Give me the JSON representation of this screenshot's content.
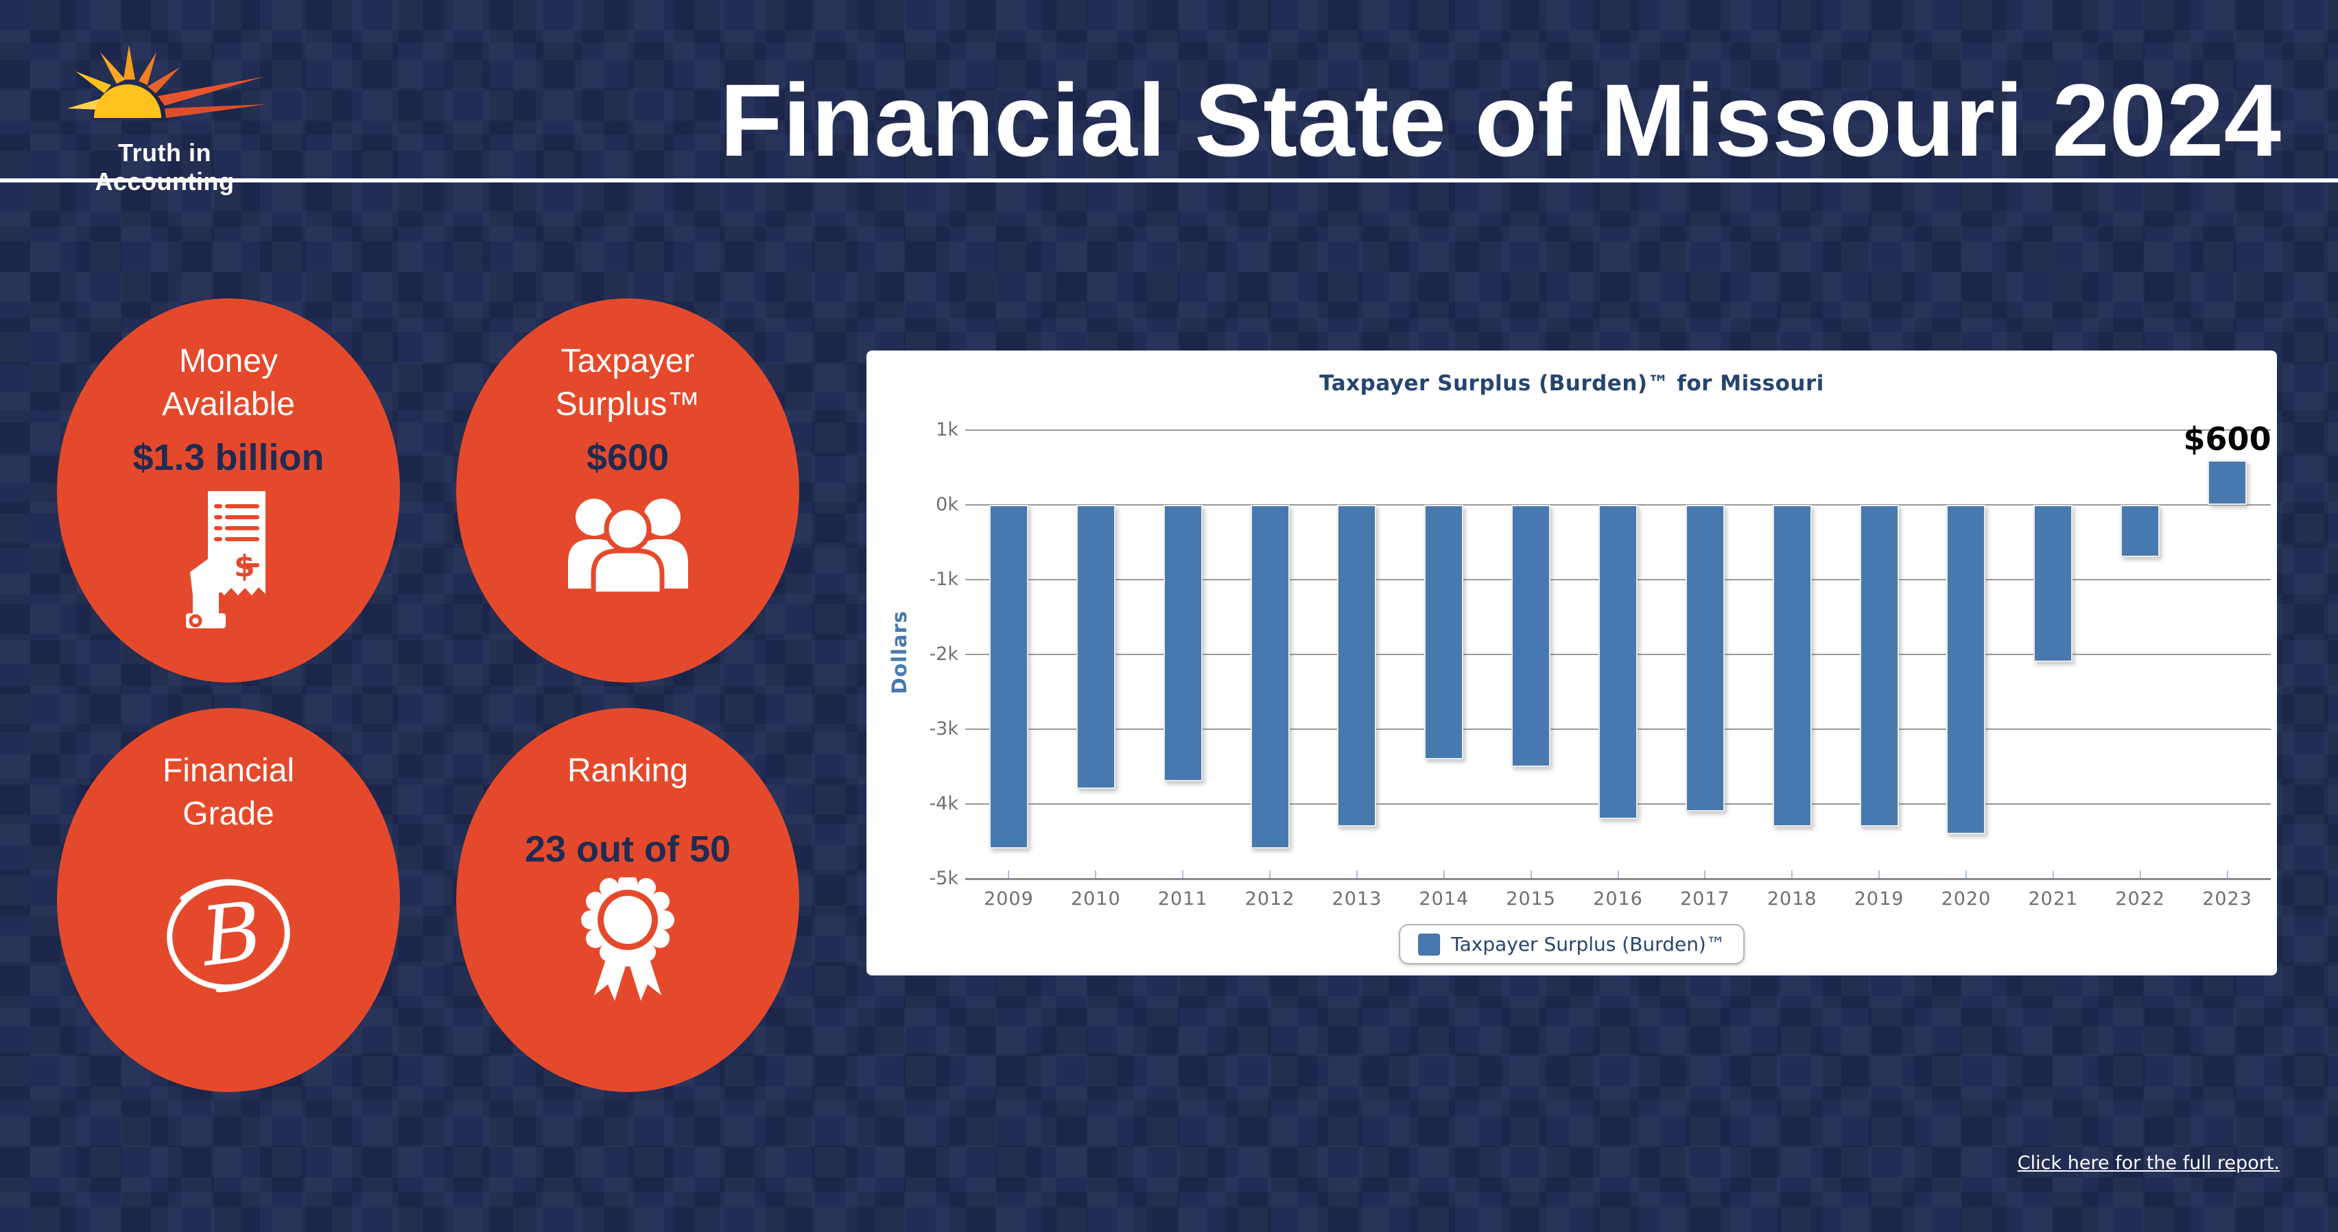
{
  "header": {
    "logo_text": "Truth in Accounting",
    "title": "Financial State of Missouri 2024"
  },
  "stats": {
    "money": {
      "line1": "Money",
      "line2": "Available",
      "value": "$1.3 billion"
    },
    "surplus": {
      "line1": "Taxpayer",
      "line2": "Surplus™",
      "value": "$600"
    },
    "grade": {
      "line1": "Financial",
      "line2": "Grade",
      "grade_letter": "B"
    },
    "ranking": {
      "line1": "Ranking",
      "value": "23 out of 50"
    }
  },
  "chart_data": {
    "type": "bar",
    "title": "Taxpayer Surplus (Burden)™ for Missouri",
    "xlabel": "",
    "ylabel": "Dollars",
    "categories": [
      "2009",
      "2010",
      "2011",
      "2012",
      "2013",
      "2014",
      "2015",
      "2016",
      "2017",
      "2018",
      "2019",
      "2020",
      "2021",
      "2022",
      "2023"
    ],
    "series": [
      {
        "name": "Taxpayer Surplus (Burden)™",
        "values": [
          -4600,
          -3800,
          -3700,
          -4600,
          -4300,
          -3400,
          -3500,
          -4200,
          -4100,
          -4300,
          -4300,
          -4400,
          -2100,
          -700,
          600
        ]
      }
    ],
    "ylim": [
      -5000,
      1000
    ],
    "yticks": [
      {
        "label": "1k",
        "value": 1000
      },
      {
        "label": "0k",
        "value": 0
      },
      {
        "label": "-1k",
        "value": -1000
      },
      {
        "label": "-2k",
        "value": -2000
      },
      {
        "label": "-3k",
        "value": -3000
      },
      {
        "label": "-4k",
        "value": -4000
      },
      {
        "label": "-5k",
        "value": -5000
      }
    ],
    "grid": true,
    "annotation": {
      "text": "$600",
      "category": "2023"
    },
    "legend": {
      "label": "Taxpayer Surplus (Burden)™",
      "position": "bottom"
    },
    "bar_color": "#4879ae"
  },
  "footer": {
    "link_text": "Click here for the full report."
  },
  "colors": {
    "background_navy": "#212d55",
    "accent_orange": "#e5492b",
    "value_navy": "#1f2b52",
    "bar_blue": "#4879ae",
    "chart_text_blue": "#26456e",
    "white": "#ffffff"
  }
}
